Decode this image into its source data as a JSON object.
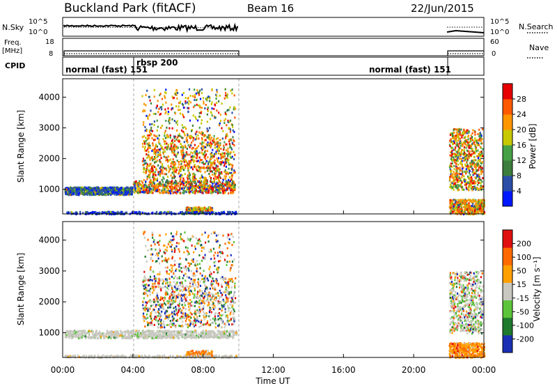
{
  "header": {
    "site": "Buckland Park (fitACF)",
    "beam": "Beam 16",
    "date": "22/Jun/2015"
  },
  "panels": {
    "nsky": {
      "label": "N.Sky",
      "ticks": [
        "10^5",
        "10^0"
      ]
    },
    "nsearch": {
      "label": "N.Search",
      "ticks": [
        "10^5",
        "10^0"
      ]
    },
    "freq": {
      "label_line1": "Freq.",
      "label_line2": "[MHz]",
      "ticks": [
        "18",
        "8"
      ]
    },
    "nave": {
      "label": "Nave",
      "ticks": [
        "60",
        "0"
      ]
    },
    "cpid": {
      "label": "CPID",
      "modes": [
        "normal (fast) 151",
        "rbsp 200",
        "normal (fast) 151"
      ]
    }
  },
  "colors": {
    "power": [
      "#0018ff",
      "#2a4ea8",
      "#3d7d3d",
      "#46a046",
      "#c8c800",
      "#ff9600",
      "#ff5a00",
      "#e60000"
    ],
    "velocity": [
      "#1a2fb4",
      "#1f7a2e",
      "#5cc43a",
      "#c8c8c0",
      "#ffa000",
      "#ff6a00",
      "#e01010"
    ]
  },
  "chart_data": [
    {
      "type": "heatmap",
      "title": "",
      "xlabel": "",
      "ylabel": "Slant Range [km]",
      "xlim_hours": [
        0,
        24
      ],
      "ylim_km": [
        200,
        4600
      ],
      "yticks": [
        "4000",
        "3000",
        "2000",
        "1000"
      ],
      "colorbar": {
        "label": "Power [dB]",
        "ticks": [
          "28",
          "24",
          "20",
          "16",
          "12",
          "8",
          "4"
        ]
      },
      "grid": false
    },
    {
      "type": "heatmap",
      "title": "",
      "xlabel": "Time UT",
      "ylabel": "Slant Range [km]",
      "xlim_hours": [
        0,
        24
      ],
      "ylim_km": [
        200,
        4600
      ],
      "xticks": [
        "00:00",
        "04:00",
        "08:00",
        "12:00",
        "16:00",
        "20:00",
        "00:00"
      ],
      "yticks": [
        "4000",
        "3000",
        "2000",
        "1000"
      ],
      "colorbar": {
        "label": "Velocity [m s⁻¹]",
        "ticks": [
          "200",
          "100",
          "50",
          "15",
          "-15",
          "-50",
          "-100",
          "-200"
        ]
      },
      "grid": false
    }
  ]
}
